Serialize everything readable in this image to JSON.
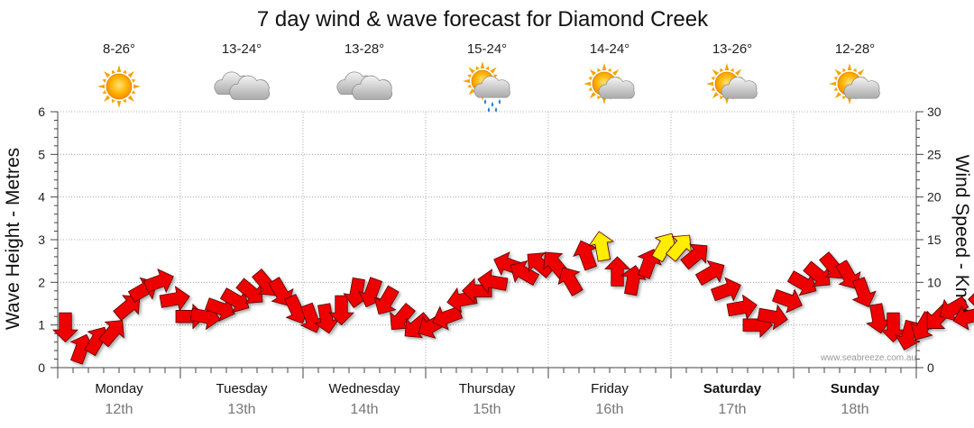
{
  "chart_data": {
    "type": "line",
    "title": "7 day wind & wave forecast for Diamond Creek",
    "ylabel_left": "Wave Height - Metres",
    "ylabel_right": "Wind Speed - Knots",
    "ylim_left": [
      0,
      6
    ],
    "ylim_right": [
      0,
      30
    ],
    "yticks_left": [
      0,
      1,
      2,
      3,
      4,
      5,
      6
    ],
    "yticks_right": [
      0,
      5,
      10,
      15,
      20,
      25,
      30
    ],
    "grid": true,
    "watermark": "www.seabreeze.com.au",
    "days": [
      {
        "name": "Monday",
        "date": "12th",
        "bold": false,
        "temp": "8-26°",
        "weather": "sunny-icon"
      },
      {
        "name": "Tuesday",
        "date": "13th",
        "bold": false,
        "temp": "13-24°",
        "weather": "cloudy-icon"
      },
      {
        "name": "Wednesday",
        "date": "14th",
        "bold": false,
        "temp": "13-28°",
        "weather": "cloudy-icon"
      },
      {
        "name": "Thursday",
        "date": "15th",
        "bold": false,
        "temp": "15-24°",
        "weather": "sun-cloud-rain-icon"
      },
      {
        "name": "Friday",
        "date": "16th",
        "bold": false,
        "temp": "14-24°",
        "weather": "partly-cloudy-icon"
      },
      {
        "name": "Saturday",
        "date": "17th",
        "bold": true,
        "temp": "13-26°",
        "weather": "partly-cloudy-icon"
      },
      {
        "name": "Sunday",
        "date": "18th",
        "bold": true,
        "temp": "12-28°",
        "weather": "partly-cloudy-icon"
      }
    ],
    "series": [
      {
        "name": "Wind speed (knots) with direction arrows, 3-hourly",
        "step_hours": 3,
        "start_hour": 0,
        "colors": {
          "normal": "#ee0000",
          "strong": "#ffee00"
        },
        "strong_threshold_knots": 13.5,
        "values": [
          5,
          2,
          3,
          4,
          7,
          9,
          10,
          8,
          6,
          6,
          7,
          8,
          9,
          10,
          9,
          7,
          6,
          6,
          7,
          9,
          9,
          8,
          6,
          5,
          5,
          6,
          8,
          9,
          10,
          12,
          11,
          12,
          12,
          10,
          13,
          14,
          11,
          10,
          12,
          14,
          14,
          13,
          11,
          9,
          7,
          5,
          6,
          8,
          10,
          11,
          12,
          11,
          9,
          6,
          5,
          4,
          5,
          6,
          7,
          6,
          8,
          9,
          7,
          5
        ],
        "direction_deg": [
          0,
          200,
          210,
          220,
          230,
          240,
          250,
          260,
          270,
          280,
          290,
          300,
          310,
          320,
          330,
          335,
          340,
          350,
          0,
          10,
          20,
          30,
          40,
          50,
          60,
          70,
          80,
          90,
          100,
          110,
          120,
          130,
          140,
          150,
          160,
          170,
          180,
          190,
          200,
          210,
          220,
          230,
          240,
          250,
          260,
          270,
          280,
          290,
          300,
          310,
          320,
          330,
          340,
          350,
          0,
          15,
          30,
          45,
          60,
          75,
          90,
          105,
          120,
          135
        ]
      }
    ]
  }
}
